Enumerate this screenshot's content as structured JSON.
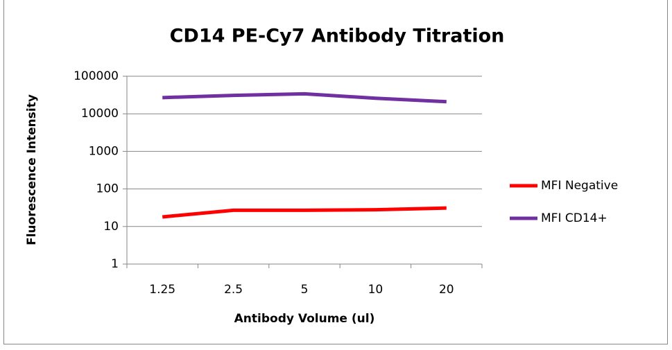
{
  "chart_data": {
    "type": "line",
    "title": "CD14 PE-Cy7 Antibody Titration",
    "x_label": "Antibody Volume (ul)",
    "y_label": "Fluorescence Intensity",
    "categories": [
      "1.25",
      "2.5",
      "5",
      "10",
      "20"
    ],
    "series": [
      {
        "name": "MFI Negative",
        "color": "#ff0000",
        "values": [
          18,
          27,
          27,
          28,
          31
        ]
      },
      {
        "name": "MFI CD14+",
        "color": "#7030a0",
        "values": [
          27000,
          31000,
          34000,
          26000,
          21000
        ]
      }
    ],
    "log_scale": true,
    "ylim": [
      1,
      100000
    ],
    "yticks": [
      1,
      10,
      100,
      1000,
      10000,
      100000
    ],
    "grid": true,
    "legend": "right"
  }
}
